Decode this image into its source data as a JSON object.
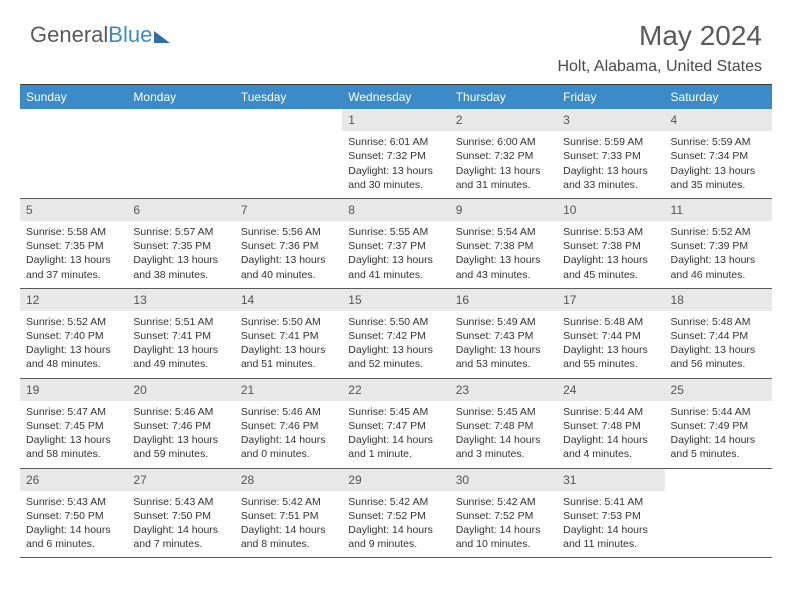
{
  "brand": {
    "part1": "General",
    "part2": "Blue"
  },
  "title": "May 2024",
  "location": "Holt, Alabama, United States",
  "dow": [
    "Sunday",
    "Monday",
    "Tuesday",
    "Wednesday",
    "Thursday",
    "Friday",
    "Saturday"
  ],
  "colors": {
    "header_bg": "#3b8bc9",
    "daynum_bg": "#e8e8e8"
  },
  "weeks": [
    [
      {
        "n": "",
        "sr": "",
        "ss": "",
        "dl": ""
      },
      {
        "n": "",
        "sr": "",
        "ss": "",
        "dl": ""
      },
      {
        "n": "",
        "sr": "",
        "ss": "",
        "dl": ""
      },
      {
        "n": "1",
        "sr": "Sunrise: 6:01 AM",
        "ss": "Sunset: 7:32 PM",
        "dl": "Daylight: 13 hours and 30 minutes."
      },
      {
        "n": "2",
        "sr": "Sunrise: 6:00 AM",
        "ss": "Sunset: 7:32 PM",
        "dl": "Daylight: 13 hours and 31 minutes."
      },
      {
        "n": "3",
        "sr": "Sunrise: 5:59 AM",
        "ss": "Sunset: 7:33 PM",
        "dl": "Daylight: 13 hours and 33 minutes."
      },
      {
        "n": "4",
        "sr": "Sunrise: 5:59 AM",
        "ss": "Sunset: 7:34 PM",
        "dl": "Daylight: 13 hours and 35 minutes."
      }
    ],
    [
      {
        "n": "5",
        "sr": "Sunrise: 5:58 AM",
        "ss": "Sunset: 7:35 PM",
        "dl": "Daylight: 13 hours and 37 minutes."
      },
      {
        "n": "6",
        "sr": "Sunrise: 5:57 AM",
        "ss": "Sunset: 7:35 PM",
        "dl": "Daylight: 13 hours and 38 minutes."
      },
      {
        "n": "7",
        "sr": "Sunrise: 5:56 AM",
        "ss": "Sunset: 7:36 PM",
        "dl": "Daylight: 13 hours and 40 minutes."
      },
      {
        "n": "8",
        "sr": "Sunrise: 5:55 AM",
        "ss": "Sunset: 7:37 PM",
        "dl": "Daylight: 13 hours and 41 minutes."
      },
      {
        "n": "9",
        "sr": "Sunrise: 5:54 AM",
        "ss": "Sunset: 7:38 PM",
        "dl": "Daylight: 13 hours and 43 minutes."
      },
      {
        "n": "10",
        "sr": "Sunrise: 5:53 AM",
        "ss": "Sunset: 7:38 PM",
        "dl": "Daylight: 13 hours and 45 minutes."
      },
      {
        "n": "11",
        "sr": "Sunrise: 5:52 AM",
        "ss": "Sunset: 7:39 PM",
        "dl": "Daylight: 13 hours and 46 minutes."
      }
    ],
    [
      {
        "n": "12",
        "sr": "Sunrise: 5:52 AM",
        "ss": "Sunset: 7:40 PM",
        "dl": "Daylight: 13 hours and 48 minutes."
      },
      {
        "n": "13",
        "sr": "Sunrise: 5:51 AM",
        "ss": "Sunset: 7:41 PM",
        "dl": "Daylight: 13 hours and 49 minutes."
      },
      {
        "n": "14",
        "sr": "Sunrise: 5:50 AM",
        "ss": "Sunset: 7:41 PM",
        "dl": "Daylight: 13 hours and 51 minutes."
      },
      {
        "n": "15",
        "sr": "Sunrise: 5:50 AM",
        "ss": "Sunset: 7:42 PM",
        "dl": "Daylight: 13 hours and 52 minutes."
      },
      {
        "n": "16",
        "sr": "Sunrise: 5:49 AM",
        "ss": "Sunset: 7:43 PM",
        "dl": "Daylight: 13 hours and 53 minutes."
      },
      {
        "n": "17",
        "sr": "Sunrise: 5:48 AM",
        "ss": "Sunset: 7:44 PM",
        "dl": "Daylight: 13 hours and 55 minutes."
      },
      {
        "n": "18",
        "sr": "Sunrise: 5:48 AM",
        "ss": "Sunset: 7:44 PM",
        "dl": "Daylight: 13 hours and 56 minutes."
      }
    ],
    [
      {
        "n": "19",
        "sr": "Sunrise: 5:47 AM",
        "ss": "Sunset: 7:45 PM",
        "dl": "Daylight: 13 hours and 58 minutes."
      },
      {
        "n": "20",
        "sr": "Sunrise: 5:46 AM",
        "ss": "Sunset: 7:46 PM",
        "dl": "Daylight: 13 hours and 59 minutes."
      },
      {
        "n": "21",
        "sr": "Sunrise: 5:46 AM",
        "ss": "Sunset: 7:46 PM",
        "dl": "Daylight: 14 hours and 0 minutes."
      },
      {
        "n": "22",
        "sr": "Sunrise: 5:45 AM",
        "ss": "Sunset: 7:47 PM",
        "dl": "Daylight: 14 hours and 1 minute."
      },
      {
        "n": "23",
        "sr": "Sunrise: 5:45 AM",
        "ss": "Sunset: 7:48 PM",
        "dl": "Daylight: 14 hours and 3 minutes."
      },
      {
        "n": "24",
        "sr": "Sunrise: 5:44 AM",
        "ss": "Sunset: 7:48 PM",
        "dl": "Daylight: 14 hours and 4 minutes."
      },
      {
        "n": "25",
        "sr": "Sunrise: 5:44 AM",
        "ss": "Sunset: 7:49 PM",
        "dl": "Daylight: 14 hours and 5 minutes."
      }
    ],
    [
      {
        "n": "26",
        "sr": "Sunrise: 5:43 AM",
        "ss": "Sunset: 7:50 PM",
        "dl": "Daylight: 14 hours and 6 minutes."
      },
      {
        "n": "27",
        "sr": "Sunrise: 5:43 AM",
        "ss": "Sunset: 7:50 PM",
        "dl": "Daylight: 14 hours and 7 minutes."
      },
      {
        "n": "28",
        "sr": "Sunrise: 5:42 AM",
        "ss": "Sunset: 7:51 PM",
        "dl": "Daylight: 14 hours and 8 minutes."
      },
      {
        "n": "29",
        "sr": "Sunrise: 5:42 AM",
        "ss": "Sunset: 7:52 PM",
        "dl": "Daylight: 14 hours and 9 minutes."
      },
      {
        "n": "30",
        "sr": "Sunrise: 5:42 AM",
        "ss": "Sunset: 7:52 PM",
        "dl": "Daylight: 14 hours and 10 minutes."
      },
      {
        "n": "31",
        "sr": "Sunrise: 5:41 AM",
        "ss": "Sunset: 7:53 PM",
        "dl": "Daylight: 14 hours and 11 minutes."
      },
      {
        "n": "",
        "sr": "",
        "ss": "",
        "dl": ""
      }
    ]
  ]
}
